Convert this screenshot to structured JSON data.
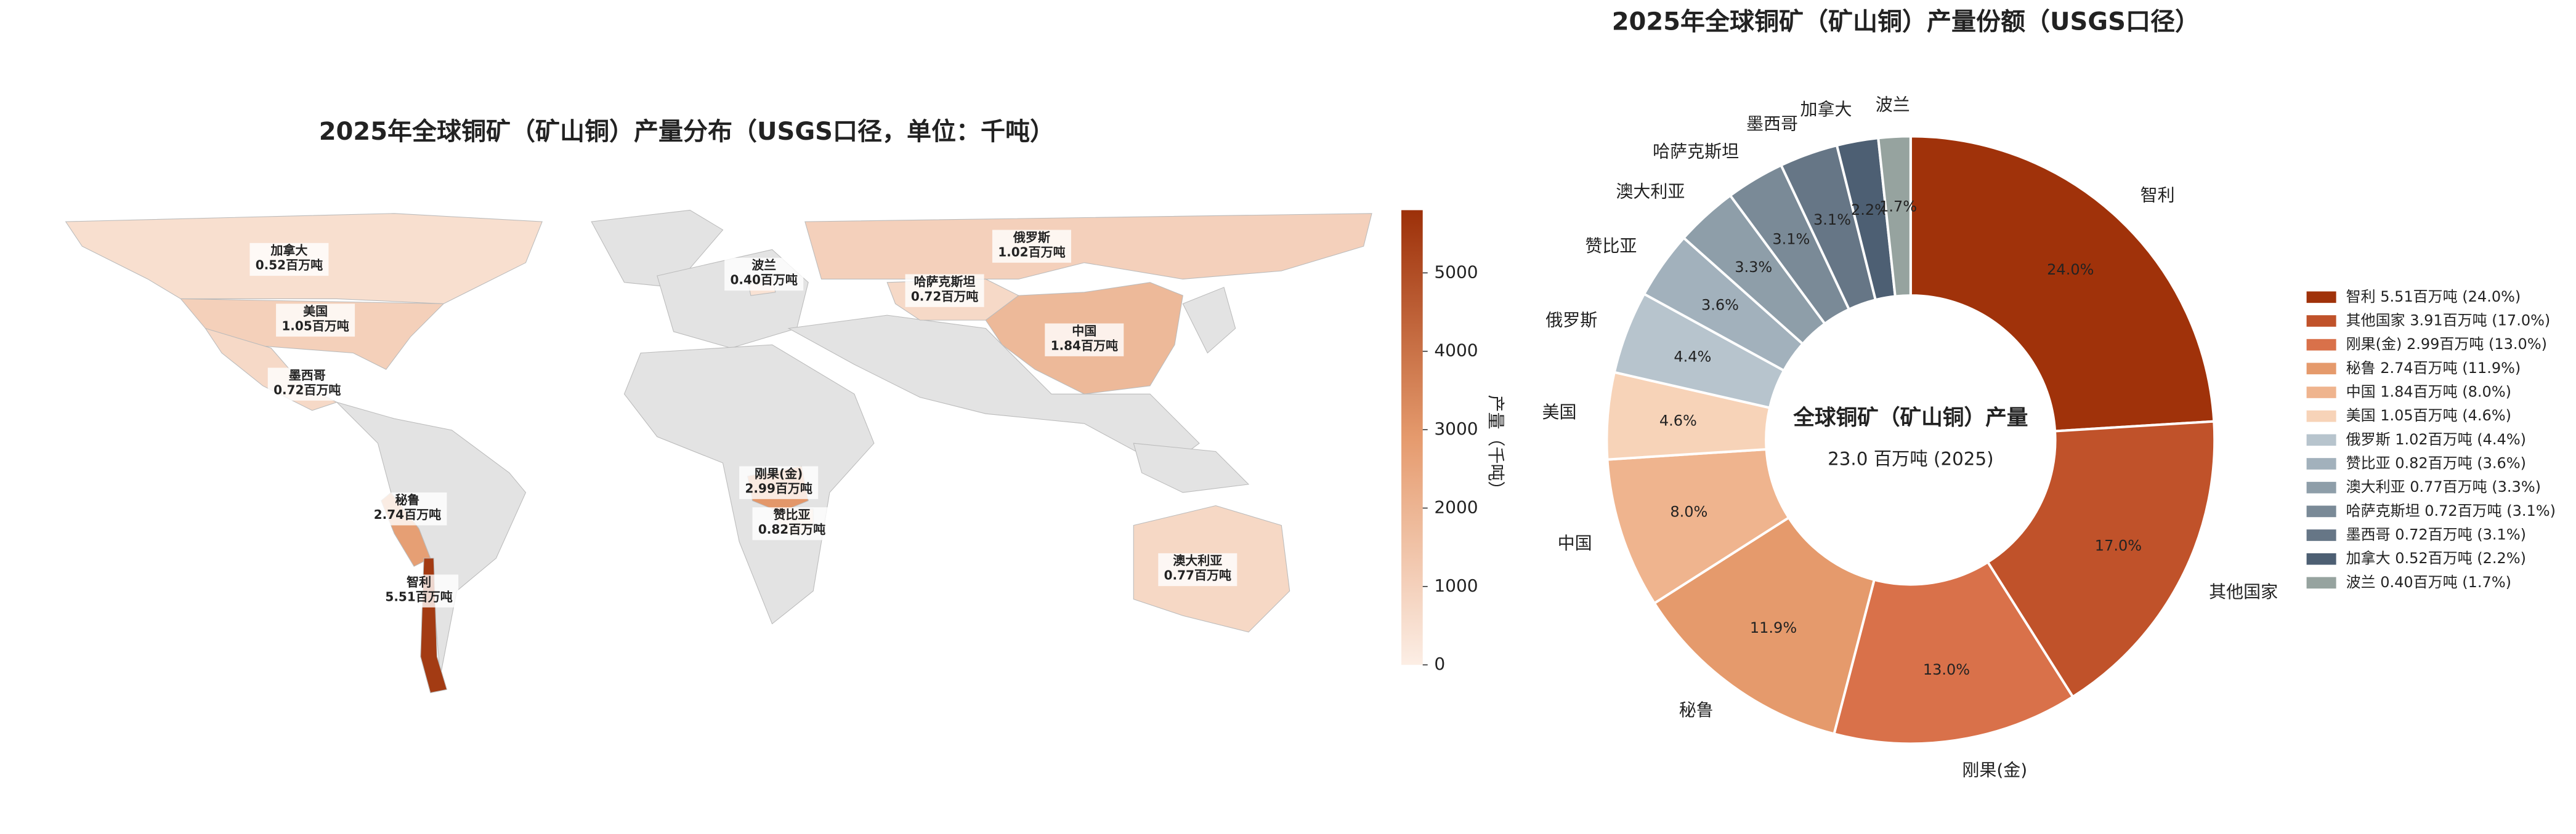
{
  "chart_data": [
    {
      "type": "map",
      "title": "2025年全球铜矿（矿山铜）产量分布（USGS口径，单位：千吨）",
      "regions": [
        "加拿大",
        "美国",
        "墨西哥",
        "秘鲁",
        "智利",
        "波兰",
        "俄罗斯",
        "哈萨克斯坦",
        "中国",
        "刚果(金)",
        "赞比亚",
        "澳大利亚"
      ],
      "values": [
        520,
        1050,
        720,
        2740,
        5510,
        400,
        1020,
        720,
        1840,
        2990,
        820,
        770
      ],
      "value_labels": [
        "0.52百万吨",
        "1.05百万吨",
        "0.72百万吨",
        "2.74百万吨",
        "5.51百万吨",
        "0.40百万吨",
        "1.02百万吨",
        "0.72百万吨",
        "1.84百万吨",
        "2.99百万吨",
        "0.82百万吨",
        "0.77百万吨"
      ],
      "colorbar_label": "产量（千吨）",
      "clim": [
        0,
        5800
      ],
      "cticks": [
        0,
        1000,
        2000,
        3000,
        4000,
        5000
      ]
    },
    {
      "type": "donut",
      "title": "2025年全球铜矿（矿山铜）产量份额（USGS口径）",
      "center_title": "全球铜矿（矿山铜）产量",
      "center_subtitle": "23.0 百万吨 (2025)",
      "categories": [
        "智利",
        "其他国家",
        "刚果(金)",
        "秘鲁",
        "中国",
        "美国",
        "俄罗斯",
        "赞比亚",
        "澳大利亚",
        "哈萨克斯坦",
        "墨西哥",
        "加拿大",
        "波兰"
      ],
      "values": [
        24.0,
        17.0,
        13.0,
        11.9,
        8.0,
        4.6,
        4.4,
        3.6,
        3.3,
        3.1,
        3.1,
        2.2,
        1.7
      ],
      "value_labels": [
        "24.0%",
        "17.0%",
        "13.0%",
        "11.9%",
        "8.0%",
        "4.6%",
        "4.4%",
        "3.6%",
        "3.3%",
        "3.1%",
        "3.1%",
        "2.2%",
        "1.7%"
      ],
      "legend_labels": [
        "智利  5.51百万吨 (24.0%)",
        "其他国家  3.91百万吨 (17.0%)",
        "刚果(金)  2.99百万吨 (13.0%)",
        "秘鲁  2.74百万吨 (11.9%)",
        "中国  1.84百万吨 (8.0%)",
        "美国  1.05百万吨 (4.6%)",
        "俄罗斯  1.02百万吨 (4.4%)",
        "赞比亚  0.82百万吨 (3.6%)",
        "澳大利亚  0.77百万吨 (3.3%)",
        "哈萨克斯坦  0.72百万吨 (3.1%)",
        "墨西哥  0.72百万吨 (3.1%)",
        "加拿大  0.52百万吨 (2.2%)",
        "波兰  0.40百万吨 (1.7%)"
      ],
      "colors": [
        "#a0320a",
        "#c0522a",
        "#d9714a",
        "#e59a6c",
        "#efb48e",
        "#f7d3b8",
        "#b7c4cd",
        "#a2b1bc",
        "#8e9ea9",
        "#7a8a97",
        "#667686",
        "#4d5f73",
        "#96a39f"
      ],
      "legend": "right"
    }
  ]
}
